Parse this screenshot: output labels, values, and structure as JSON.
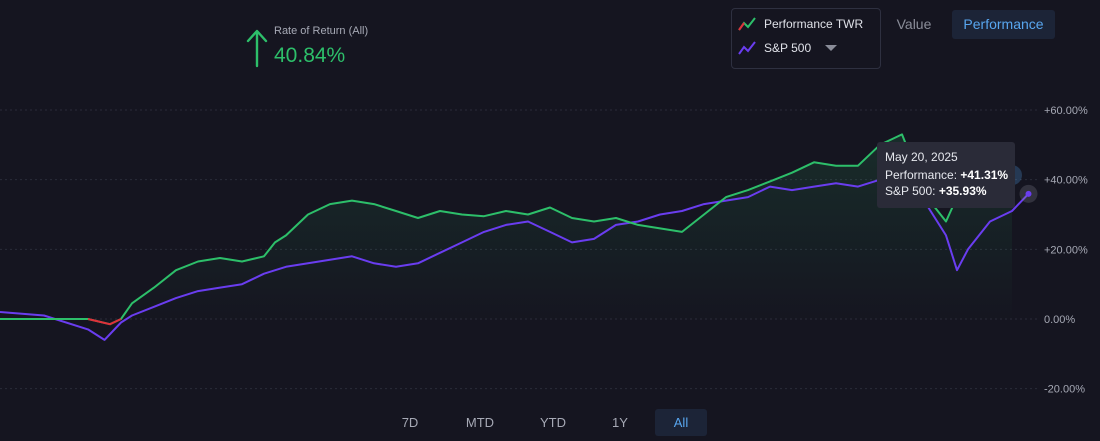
{
  "header": {
    "rate_label": "Rate of Return (All)",
    "rate_value": "40.84%",
    "direction": "up"
  },
  "legend": {
    "items": [
      {
        "label": "Performance TWR",
        "icon": "performance-twr-icon"
      },
      {
        "label": "S&P 500",
        "icon": "sp500-icon"
      }
    ]
  },
  "view_toggle": {
    "options": [
      "Value",
      "Performance"
    ],
    "selected": "Performance"
  },
  "tooltip": {
    "date": "May 20, 2025",
    "perf_label": "Performance:",
    "perf_value": "+41.31%",
    "sp_label": "S&P 500:",
    "sp_value": "+35.93%"
  },
  "ranges": {
    "options": [
      "7D",
      "MTD",
      "YTD",
      "1Y",
      "All"
    ],
    "selected": "All"
  },
  "colors": {
    "performance": "#2dbf6a",
    "sp500": "#6a3df0",
    "negative": "#e0303a",
    "accent": "#58a6ef",
    "background": "#151520"
  },
  "chart_data": {
    "type": "line",
    "ylim": [
      -20,
      60
    ],
    "yticks": [
      "+60.00%",
      "+40.00%",
      "+20.00%",
      "0.00%",
      "-20.00%"
    ],
    "ytick_values": [
      60,
      40,
      20,
      0,
      -20
    ],
    "grid": true,
    "legend_position": "top-right",
    "x_range": [
      0,
      100
    ],
    "series": [
      {
        "name": "Performance TWR",
        "points": [
          [
            0,
            0
          ],
          [
            4,
            0
          ],
          [
            8,
            0
          ],
          [
            10,
            -1.5
          ],
          [
            11,
            0
          ],
          [
            12,
            4.5
          ],
          [
            14,
            9
          ],
          [
            16,
            14
          ],
          [
            18,
            16.5
          ],
          [
            20,
            17.5
          ],
          [
            22,
            16.5
          ],
          [
            24,
            18
          ],
          [
            25,
            22
          ],
          [
            26,
            24
          ],
          [
            28,
            30
          ],
          [
            30,
            33
          ],
          [
            32,
            34
          ],
          [
            34,
            33
          ],
          [
            36,
            31
          ],
          [
            38,
            29
          ],
          [
            40,
            31
          ],
          [
            42,
            30
          ],
          [
            44,
            29.5
          ],
          [
            46,
            31
          ],
          [
            48,
            30
          ],
          [
            50,
            32
          ],
          [
            52,
            29
          ],
          [
            54,
            28
          ],
          [
            56,
            29
          ],
          [
            58,
            27
          ],
          [
            60,
            26
          ],
          [
            62,
            25
          ],
          [
            64,
            30
          ],
          [
            66,
            35
          ],
          [
            68,
            37
          ],
          [
            70,
            39.5
          ],
          [
            72,
            42
          ],
          [
            74,
            45
          ],
          [
            76,
            44
          ],
          [
            78,
            44
          ],
          [
            80,
            50
          ],
          [
            82,
            53
          ],
          [
            82.5,
            49
          ],
          [
            83,
            48
          ],
          [
            84,
            34
          ],
          [
            85,
            32
          ],
          [
            86,
            28
          ],
          [
            87,
            35
          ],
          [
            88,
            40
          ],
          [
            90,
            41
          ],
          [
            92,
            41.3
          ]
        ]
      },
      {
        "name": "S&P 500",
        "points": [
          [
            0,
            2
          ],
          [
            4,
            1
          ],
          [
            8,
            -3
          ],
          [
            9.5,
            -6
          ],
          [
            11,
            -1
          ],
          [
            12,
            1
          ],
          [
            14,
            3.5
          ],
          [
            16,
            6
          ],
          [
            18,
            8
          ],
          [
            20,
            9
          ],
          [
            22,
            10
          ],
          [
            24,
            13
          ],
          [
            26,
            15
          ],
          [
            28,
            16
          ],
          [
            30,
            17
          ],
          [
            32,
            18
          ],
          [
            34,
            16
          ],
          [
            36,
            15
          ],
          [
            38,
            16
          ],
          [
            40,
            19
          ],
          [
            42,
            22
          ],
          [
            44,
            25
          ],
          [
            46,
            27
          ],
          [
            48,
            28
          ],
          [
            50,
            25
          ],
          [
            52,
            22
          ],
          [
            54,
            23
          ],
          [
            56,
            27
          ],
          [
            58,
            28
          ],
          [
            60,
            30
          ],
          [
            62,
            31
          ],
          [
            64,
            33
          ],
          [
            66,
            34
          ],
          [
            68,
            35
          ],
          [
            70,
            38
          ],
          [
            72,
            37
          ],
          [
            74,
            38
          ],
          [
            76,
            39
          ],
          [
            78,
            38
          ],
          [
            80,
            40
          ],
          [
            82,
            38
          ],
          [
            83,
            36
          ],
          [
            84,
            34
          ],
          [
            85,
            29
          ],
          [
            86,
            24
          ],
          [
            87,
            14
          ],
          [
            88,
            20
          ],
          [
            90,
            28
          ],
          [
            92,
            31
          ],
          [
            93.5,
            35.93
          ]
        ]
      }
    ]
  }
}
